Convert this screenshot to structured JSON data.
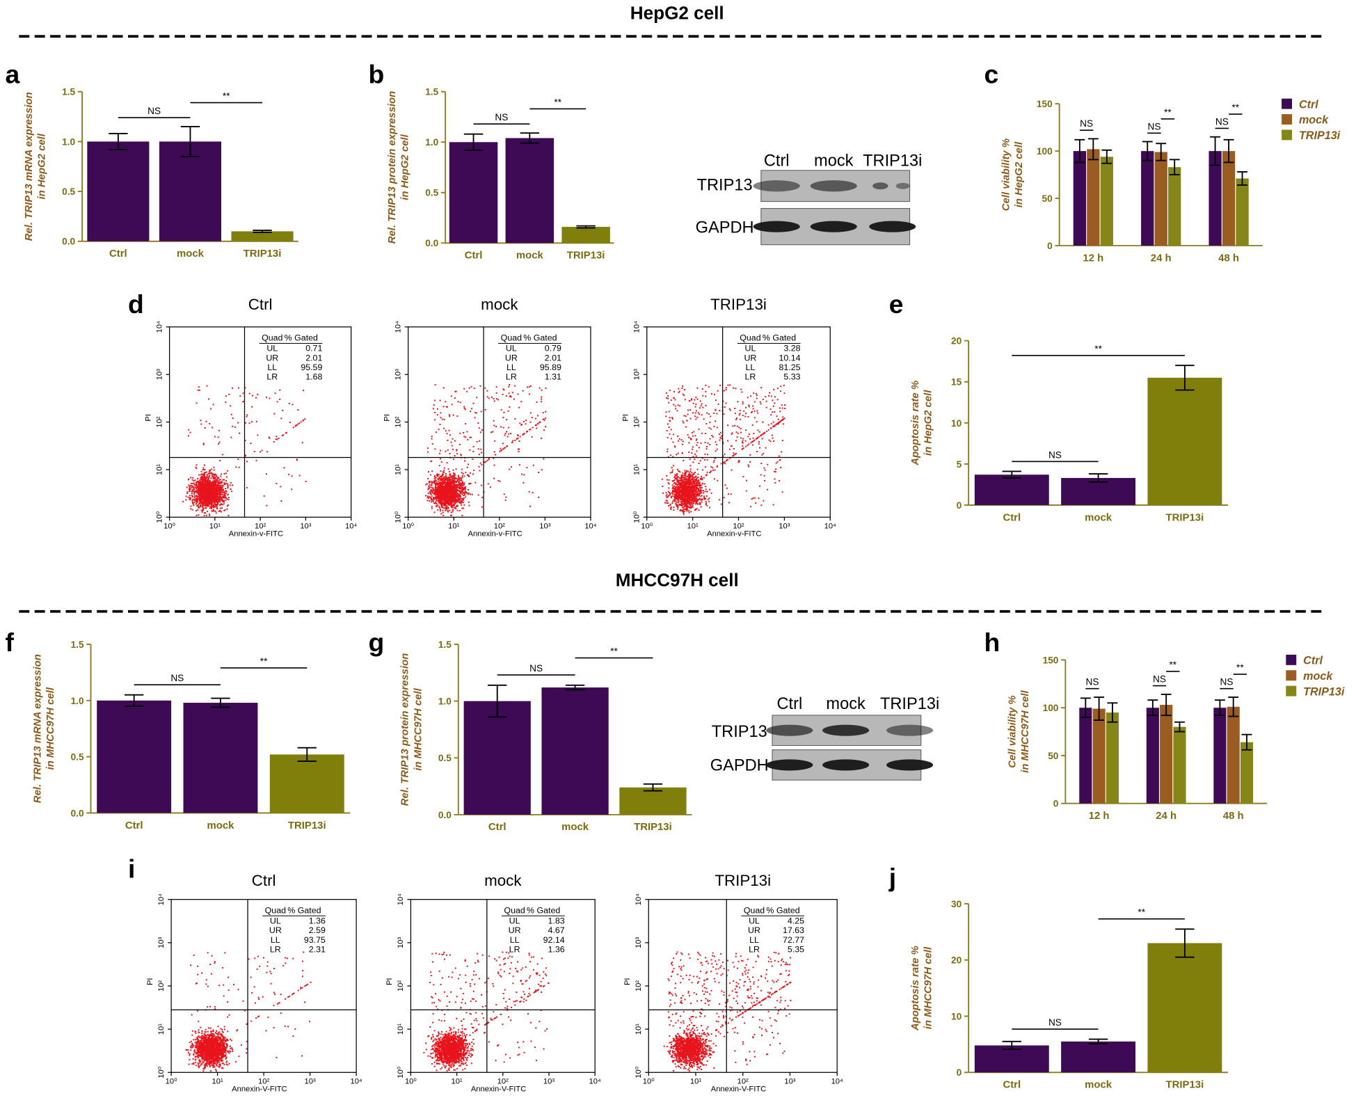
{
  "sections": [
    {
      "title": "HepG2 cell"
    },
    {
      "title": "MHCC97H cell"
    }
  ],
  "chart_data": [
    {
      "type": "bar",
      "label": "a",
      "ylabel": [
        "Rel. TRIP13 mRNA expression",
        "in HepG2 cell"
      ],
      "categories": [
        "Ctrl",
        "mock",
        "TRIP13i"
      ],
      "values": [
        1.0,
        1.0,
        0.1
      ],
      "errors": [
        0.08,
        0.15,
        0.01
      ],
      "colors": [
        "#3f0a55",
        "#3f0a55",
        "#807f0c"
      ],
      "ylim": [
        0,
        1.5
      ],
      "yticks": [
        {
          "value": 0,
          "label": "0.0"
        },
        0.5,
        {
          "value": 1,
          "label": "1.0"
        },
        1.5
      ],
      "annotations": [
        {
          "text": "NS",
          "between": [
            "Ctrl",
            "mock"
          ]
        },
        {
          "text": "**",
          "between": [
            "mock",
            "TRIP13i"
          ]
        }
      ]
    },
    {
      "type": "bar",
      "label": "b",
      "ylabel": [
        "Rel. TRIP13 protein expression",
        "in HepG2 cell"
      ],
      "categories": [
        "Ctrl",
        "mock",
        "TRIP13i"
      ],
      "values": [
        1.0,
        1.04,
        0.16
      ],
      "errors": [
        0.08,
        0.05,
        0.01
      ],
      "colors": [
        "#3f0a55",
        "#3f0a55",
        "#807f0c"
      ],
      "ylim": [
        0,
        1.5
      ],
      "yticks": [
        {
          "value": 0,
          "label": "0.0"
        },
        0.5,
        {
          "value": 1,
          "label": "1.0"
        },
        1.5
      ],
      "annotations": [
        {
          "text": "NS",
          "between": [
            "Ctrl",
            "mock"
          ]
        },
        {
          "text": "**",
          "between": [
            "mock",
            "TRIP13i"
          ]
        }
      ]
    },
    {
      "type": "grouped_bar",
      "label": "c",
      "ylabel": [
        "Cell viability %",
        "in HepG2 cell"
      ],
      "categories": [
        "12 h",
        "24 h",
        "48 h"
      ],
      "series": [
        {
          "name": "Ctrl",
          "color": "#3f0a55",
          "values": [
            100,
            100,
            100
          ],
          "errors": [
            12,
            10,
            15
          ]
        },
        {
          "name": "mock",
          "color": "#9a5c20",
          "values": [
            102,
            99,
            100
          ],
          "errors": [
            11,
            9,
            12
          ]
        },
        {
          "name": "TRIP13i",
          "color": "#868618",
          "values": [
            94,
            83,
            71
          ],
          "errors": [
            7,
            8,
            7
          ]
        }
      ],
      "ylim": [
        0,
        150
      ],
      "yticks": [
        0,
        50,
        100,
        150
      ],
      "legend": "right",
      "annotations": [
        {
          "text": "NS",
          "category": "12 h",
          "between": [
            "Ctrl",
            "mock"
          ]
        },
        {
          "text": "NS",
          "category": "24 h",
          "between": [
            "Ctrl",
            "mock"
          ]
        },
        {
          "text": "**",
          "category": "24 h",
          "between": [
            "mock",
            "TRIP13i"
          ]
        },
        {
          "text": "NS",
          "category": "48 h",
          "between": [
            "Ctrl",
            "mock"
          ]
        },
        {
          "text": "**",
          "category": "48 h",
          "between": [
            "mock",
            "TRIP13i"
          ]
        }
      ]
    },
    {
      "type": "bar",
      "label": "e",
      "ylabel": [
        "Apoptosis rate %",
        "in HepG2 cell"
      ],
      "categories": [
        "Ctrl",
        "mock",
        "TRIP13i"
      ],
      "values": [
        3.7,
        3.3,
        15.5
      ],
      "errors": [
        0.4,
        0.5,
        1.5
      ],
      "colors": [
        "#3f0a55",
        "#3f0a55",
        "#807f0c"
      ],
      "ylim": [
        0,
        20
      ],
      "yticks": [
        0,
        5,
        10,
        15,
        20
      ],
      "annotations": [
        {
          "text": "NS",
          "between": [
            "Ctrl",
            "mock"
          ]
        },
        {
          "text": "**",
          "between": [
            "Ctrl",
            "TRIP13i"
          ]
        }
      ]
    },
    {
      "type": "bar",
      "label": "f",
      "ylabel": [
        "Rel. TRIP13 mRNA expression",
        "in MHCC97H cell"
      ],
      "categories": [
        "Ctrl",
        "mock",
        "TRIP13i"
      ],
      "values": [
        1.0,
        0.98,
        0.52
      ],
      "errors": [
        0.05,
        0.04,
        0.06
      ],
      "colors": [
        "#3f0a55",
        "#3f0a55",
        "#807f0c"
      ],
      "ylim": [
        0,
        1.5
      ],
      "yticks": [
        {
          "value": 0,
          "label": "0.0"
        },
        0.5,
        {
          "value": 1,
          "label": "1.0"
        },
        1.5
      ],
      "annotations": [
        {
          "text": "NS",
          "between": [
            "Ctrl",
            "mock"
          ]
        },
        {
          "text": "**",
          "between": [
            "mock",
            "TRIP13i"
          ]
        }
      ]
    },
    {
      "type": "bar",
      "label": "g",
      "ylabel": [
        "Rel. TRIP13 protein expression",
        "in MHCC97H cell"
      ],
      "categories": [
        "Ctrl",
        "mock",
        "TRIP13i"
      ],
      "values": [
        1.0,
        1.12,
        0.24
      ],
      "errors": [
        0.14,
        0.02,
        0.03
      ],
      "colors": [
        "#3f0a55",
        "#3f0a55",
        "#807f0c"
      ],
      "ylim": [
        0,
        1.5
      ],
      "yticks": [
        {
          "value": 0,
          "label": "0.0"
        },
        0.5,
        {
          "value": 1,
          "label": "1.0"
        },
        1.5
      ],
      "annotations": [
        {
          "text": "NS",
          "between": [
            "Ctrl",
            "mock"
          ]
        },
        {
          "text": "**",
          "between": [
            "mock",
            "TRIP13i"
          ]
        }
      ]
    },
    {
      "type": "grouped_bar",
      "label": "h",
      "ylabel": [
        "Cell viability %",
        "in MHCC97H cell"
      ],
      "categories": [
        "12 h",
        "24 h",
        "48 h"
      ],
      "series": [
        {
          "name": "Ctrl",
          "color": "#3f0a55",
          "values": [
            100,
            100,
            100
          ],
          "errors": [
            10,
            8,
            8
          ]
        },
        {
          "name": "mock",
          "color": "#9a5c20",
          "values": [
            99,
            103,
            101
          ],
          "errors": [
            12,
            11,
            10
          ]
        },
        {
          "name": "TRIP13i",
          "color": "#868618",
          "values": [
            95,
            80,
            64
          ],
          "errors": [
            10,
            5,
            8
          ]
        }
      ],
      "ylim": [
        0,
        150
      ],
      "yticks": [
        0,
        50,
        100,
        150
      ],
      "legend": "right",
      "annotations": [
        {
          "text": "NS",
          "category": "12 h",
          "between": [
            "Ctrl",
            "mock"
          ]
        },
        {
          "text": "NS",
          "category": "24 h",
          "between": [
            "Ctrl",
            "mock"
          ]
        },
        {
          "text": "**",
          "category": "24 h",
          "between": [
            "mock",
            "TRIP13i"
          ]
        },
        {
          "text": "NS",
          "category": "48 h",
          "between": [
            "Ctrl",
            "mock"
          ]
        },
        {
          "text": "**",
          "category": "48 h",
          "between": [
            "mock",
            "TRIP13i"
          ]
        }
      ]
    },
    {
      "type": "bar",
      "label": "j",
      "ylabel": [
        "Apoptosis rate %",
        "in MHCC97H cell"
      ],
      "categories": [
        "Ctrl",
        "mock",
        "TRIP13i"
      ],
      "values": [
        4.8,
        5.5,
        23
      ],
      "errors": [
        0.7,
        0.4,
        2.5
      ],
      "colors": [
        "#3f0a55",
        "#3f0a55",
        "#807f0c"
      ],
      "ylim": [
        0,
        30
      ],
      "yticks": [
        0,
        10,
        20,
        30
      ],
      "annotations": [
        {
          "text": "NS",
          "between": [
            "Ctrl",
            "mock"
          ]
        },
        {
          "text": "**",
          "between": [
            "mock",
            "TRIP13i"
          ]
        }
      ]
    }
  ],
  "flow_panels": [
    {
      "label": "d",
      "xlabel": "Annexin-v-FITC",
      "ylabel": "PI",
      "log_scale": true,
      "xlim": [
        1,
        10000
      ],
      "ylim": [
        1,
        10000
      ],
      "ticks": [
        {
          "value": 1,
          "label": "10⁰"
        },
        {
          "value": 10,
          "label": "10¹"
        },
        {
          "value": 100,
          "label": "10²"
        },
        {
          "value": 1000,
          "label": "10³"
        },
        {
          "value": 10000,
          "label": "10⁴"
        }
      ],
      "table_header": [
        "Quad",
        "% Gated"
      ],
      "plots": [
        {
          "title": "Ctrl",
          "rows": [
            [
              "UL",
              "0.71"
            ],
            [
              "UR",
              "2.01"
            ],
            [
              "LL",
              "95.59"
            ],
            [
              "LR",
              "1.68"
            ]
          ]
        },
        {
          "title": "mock",
          "rows": [
            [
              "UL",
              "0.79"
            ],
            [
              "UR",
              "2.01"
            ],
            [
              "LL",
              "95.89"
            ],
            [
              "LR",
              "1.31"
            ]
          ]
        },
        {
          "title": "TRIP13i",
          "rows": [
            [
              "UL",
              "3.28"
            ],
            [
              "UR",
              "10.14"
            ],
            [
              "LL",
              "81.25"
            ],
            [
              "LR",
              "5.33"
            ]
          ]
        }
      ]
    },
    {
      "label": "i",
      "xlabel": "Annexin-V-FITC",
      "ylabel": "PI",
      "log_scale": true,
      "xlim": [
        1,
        10000
      ],
      "ylim": [
        1,
        10000
      ],
      "ticks": [
        {
          "value": 1,
          "label": "10⁰"
        },
        {
          "value": 10,
          "label": "10¹"
        },
        {
          "value": 100,
          "label": "10²"
        },
        {
          "value": 1000,
          "label": "10³"
        },
        {
          "value": 10000,
          "label": "10⁴"
        }
      ],
      "table_header": [
        "Quad",
        "% Gated"
      ],
      "plots": [
        {
          "title": "Ctrl",
          "rows": [
            [
              "UL",
              "1.36"
            ],
            [
              "UR",
              "2.59"
            ],
            [
              "LL",
              "93.75"
            ],
            [
              "LR",
              "2.31"
            ]
          ]
        },
        {
          "title": "mock",
          "rows": [
            [
              "UL",
              "1.83"
            ],
            [
              "UR",
              "4.67"
            ],
            [
              "LL",
              "92.14"
            ],
            [
              "LR",
              "1.36"
            ]
          ]
        },
        {
          "title": "TRIP13i",
          "rows": [
            [
              "UL",
              "4.25"
            ],
            [
              "UR",
              "17.63"
            ],
            [
              "LL",
              "72.77"
            ],
            [
              "LR",
              "5.35"
            ]
          ]
        }
      ]
    }
  ],
  "blots": [
    {
      "columns": [
        "Ctrl",
        "mock",
        "TRIP13i"
      ],
      "rows": [
        "TRIP13",
        "GAPDH"
      ]
    },
    {
      "columns": [
        "Ctrl",
        "mock",
        "TRIP13i"
      ],
      "rows": [
        "TRIP13",
        "GAPDH"
      ]
    }
  ]
}
